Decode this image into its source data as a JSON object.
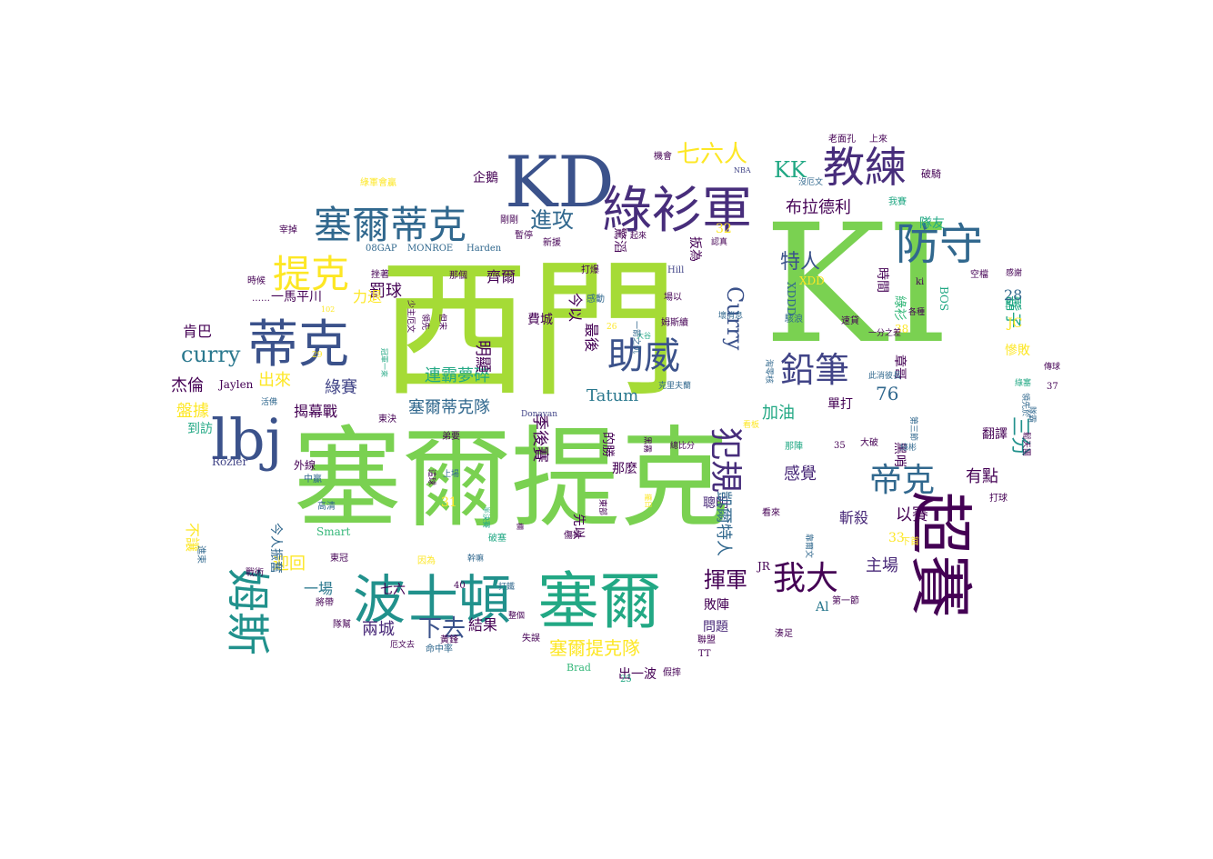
{
  "colors": {
    "background": "#ffffff",
    "green": "#7ad151",
    "lime": "#a5db36",
    "yellow": "#fde725",
    "purple": "#440154",
    "indigo": "#3b528b",
    "violet": "#472d7b",
    "teal": "#21918c",
    "teal2": "#2a788e",
    "slate": "#31688e",
    "seagreen": "#22a884",
    "mint": "#35b779",
    "navy": "#414487",
    "plum": "#482878"
  },
  "words": [
    {
      "text": "西門",
      "color": "lime"
    },
    {
      "text": "塞爾提克",
      "color": "green"
    },
    {
      "text": "KI",
      "color": "green"
    },
    {
      "text": "KD",
      "color": "indigo"
    },
    {
      "text": "綠衫軍",
      "color": "violet"
    },
    {
      "text": "塞爾蒂克",
      "color": "slate"
    },
    {
      "text": "蒂克",
      "color": "indigo"
    },
    {
      "text": "lbj",
      "color": "indigo"
    },
    {
      "text": "波士頓",
      "color": "teal"
    },
    {
      "text": "塞爾",
      "color": "seagreen"
    },
    {
      "text": "超賽",
      "color": "purple"
    },
    {
      "text": "教練",
      "color": "violet"
    },
    {
      "text": "防守",
      "color": "slate"
    },
    {
      "text": "提克",
      "color": "yellow"
    },
    {
      "text": "姆斯",
      "color": "teal"
    },
    {
      "text": "助威",
      "color": "indigo"
    },
    {
      "text": "犯規",
      "color": "violet"
    },
    {
      "text": "鉛筆",
      "color": "navy"
    },
    {
      "text": "我大",
      "color": "purple"
    },
    {
      "text": "帝克",
      "color": "slate"
    },
    {
      "text": "七六人",
      "color": "yellow"
    },
    {
      "text": "KK",
      "color": "seagreen"
    },
    {
      "text": "進攻",
      "color": "slate"
    },
    {
      "text": "Curry",
      "color": "indigo"
    },
    {
      "text": "curry",
      "color": "teal2"
    },
    {
      "text": "布拉德利",
      "color": "purple"
    },
    {
      "text": "特人",
      "color": "indigo"
    },
    {
      "text": "鬍子",
      "color": "seagreen"
    },
    {
      "text": "塞爾提克隊",
      "color": "yellow"
    },
    {
      "text": "下去",
      "color": "indigo"
    },
    {
      "text": "揮軍",
      "color": "purple"
    },
    {
      "text": "連霸夢碎",
      "color": "seagreen"
    },
    {
      "text": "綠賽",
      "color": "navy"
    },
    {
      "text": "Tatum",
      "color": "teal2"
    },
    {
      "text": "塞爾蒂克隊",
      "color": "slate"
    },
    {
      "text": "季後賽",
      "color": "purple"
    },
    {
      "text": "三分",
      "color": "teal"
    },
    {
      "text": "主場",
      "color": "plum"
    },
    {
      "text": "加油",
      "color": "seagreen"
    },
    {
      "text": "感覺",
      "color": "plum"
    },
    {
      "text": "有點",
      "color": "purple"
    },
    {
      "text": "以賽",
      "color": "purple"
    },
    {
      "text": "斬殺",
      "color": "plum"
    },
    {
      "text": "聰明",
      "color": "plum"
    },
    {
      "text": "敗陣",
      "color": "purple"
    },
    {
      "text": "問題",
      "color": "plum"
    },
    {
      "text": "兩城",
      "color": "plum"
    },
    {
      "text": "結果",
      "color": "purple"
    },
    {
      "text": "七六",
      "color": "purple"
    },
    {
      "text": "一場",
      "color": "teal2"
    },
    {
      "text": "迎回",
      "color": "yellow"
    },
    {
      "text": "不讓",
      "color": "yellow"
    },
    {
      "text": "出來",
      "color": "yellow"
    },
    {
      "text": "杰倫",
      "color": "purple"
    },
    {
      "text": "肯巴",
      "color": "purple"
    },
    {
      "text": "盤據",
      "color": "yellow"
    },
    {
      "text": "到訪",
      "color": "seagreen"
    },
    {
      "text": "揭幕戰",
      "color": "purple"
    },
    {
      "text": "罰球",
      "color": "purple"
    },
    {
      "text": "一馬平川",
      "color": "purple"
    },
    {
      "text": "力退",
      "color": "yellow"
    },
    {
      "text": "明顯",
      "color": "purple"
    },
    {
      "text": "齊爾",
      "color": "purple"
    },
    {
      "text": "費城",
      "color": "purple"
    },
    {
      "text": "今以",
      "color": "purple"
    },
    {
      "text": "最後",
      "color": "purple"
    },
    {
      "text": "驚滔",
      "color": "purple"
    },
    {
      "text": "扳為",
      "color": "purple"
    },
    {
      "text": "先以",
      "color": "purple"
    },
    {
      "text": "那麼",
      "color": "purple"
    },
    {
      "text": "的勝",
      "color": "purple"
    },
    {
      "text": "凱爾特人",
      "color": "slate"
    },
    {
      "text": "隊友",
      "color": "seagreen"
    },
    {
      "text": "時間",
      "color": "purple"
    },
    {
      "text": "慘敗",
      "color": "yellow"
    },
    {
      "text": "翻譯",
      "color": "purple"
    },
    {
      "text": "單打",
      "color": "purple"
    },
    {
      "text": "黑哨",
      "color": "purple"
    },
    {
      "text": "章哥",
      "color": "purple"
    },
    {
      "text": "綠衫",
      "color": "mint"
    },
    {
      "text": "出一波",
      "color": "purple"
    },
    {
      "text": "今人振奮",
      "color": "slate"
    },
    {
      "text": "企鵝",
      "color": "purple"
    },
    {
      "text": "76",
      "color": "slate"
    },
    {
      "text": "32",
      "color": "yellow"
    },
    {
      "text": "28",
      "color": "slate"
    },
    {
      "text": "JC",
      "color": "yellow"
    },
    {
      "text": "33",
      "color": "yellow"
    },
    {
      "text": "31",
      "color": "yellow"
    },
    {
      "text": "38",
      "color": "yellow"
    },
    {
      "text": "Al",
      "color": "teal2"
    },
    {
      "text": "XDDD",
      "color": "slate"
    },
    {
      "text": "XDD",
      "color": "yellow"
    },
    {
      "text": "Jaylen",
      "color": "purple"
    },
    {
      "text": "Rozier",
      "color": "navy"
    },
    {
      "text": "Smart",
      "color": "mint"
    },
    {
      "text": "Donavan",
      "color": "navy"
    },
    {
      "text": "Hill",
      "color": "navy"
    },
    {
      "text": "BOS",
      "color": "seagreen"
    },
    {
      "text": "Bos",
      "color": "seagreen"
    },
    {
      "text": "ki",
      "color": "purple"
    },
    {
      "text": "37",
      "color": "purple"
    },
    {
      "text": "35",
      "color": "purple"
    },
    {
      "text": "40",
      "color": "purple"
    },
    {
      "text": "25",
      "color": "seagreen"
    },
    {
      "text": "26",
      "color": "yellow"
    },
    {
      "text": "29",
      "color": "yellow"
    },
    {
      "text": "102",
      "color": "yellow"
    },
    {
      "text": "Brad",
      "color": "mint"
    },
    {
      "text": "TT",
      "color": "purple"
    },
    {
      "text": "JR",
      "color": "purple"
    },
    {
      "text": "NBA",
      "color": "navy"
    },
    {
      "text": "08GAP",
      "color": "slate"
    },
    {
      "text": "MONROE",
      "color": "slate"
    },
    {
      "text": "Harden",
      "color": "slate"
    },
    {
      "text": "綠軍會贏",
      "color": "yellow"
    },
    {
      "text": "宰掉",
      "color": "purple"
    },
    {
      "text": "時候",
      "color": "purple"
    },
    {
      "text": "……",
      "color": "purple"
    },
    {
      "text": "挫著",
      "color": "purple"
    },
    {
      "text": "那個",
      "color": "purple"
    },
    {
      "text": "剛剛",
      "color": "purple"
    },
    {
      "text": "暫停",
      "color": "purple"
    },
    {
      "text": "新援",
      "color": "purple"
    },
    {
      "text": "起來",
      "color": "purple"
    },
    {
      "text": "認真",
      "color": "purple"
    },
    {
      "text": "機會",
      "color": "purple"
    },
    {
      "text": "老面孔",
      "color": "purple"
    },
    {
      "text": "上來",
      "color": "purple"
    },
    {
      "text": "沒厄文",
      "color": "slate"
    },
    {
      "text": "我賽",
      "color": "seagreen"
    },
    {
      "text": "破騎",
      "color": "purple"
    },
    {
      "text": "空檔",
      "color": "purple"
    },
    {
      "text": "感謝",
      "color": "purple"
    },
    {
      "text": "傳球",
      "color": "purple"
    },
    {
      "text": "打爆",
      "color": "purple"
    },
    {
      "text": "場以",
      "color": "purple"
    },
    {
      "text": "感動",
      "color": "slate"
    },
    {
      "text": "姆斯續",
      "color": "purple"
    },
    {
      "text": "壞消息",
      "color": "slate"
    },
    {
      "text": "駭浪",
      "color": "slate"
    },
    {
      "text": "速貸",
      "color": "purple"
    },
    {
      "text": "一分之差",
      "color": "purple"
    },
    {
      "text": "各種",
      "color": "purple"
    },
    {
      "text": "此消彼長",
      "color": "slate"
    },
    {
      "text": "領先",
      "color": "purple"
    },
    {
      "text": "但宋",
      "color": "purple"
    },
    {
      "text": "少主厄文",
      "color": "purple"
    },
    {
      "text": "領先於",
      "color": "slate"
    },
    {
      "text": "第三節",
      "color": "slate"
    },
    {
      "text": "大破",
      "color": "purple"
    },
    {
      "text": "綠彬",
      "color": "slate"
    },
    {
      "text": "那陣",
      "color": "seagreen"
    },
    {
      "text": "總比分",
      "color": "purple"
    },
    {
      "text": "克里夫蘭",
      "color": "slate"
    },
    {
      "text": "東決",
      "color": "purple"
    },
    {
      "text": "弟要",
      "color": "purple"
    },
    {
      "text": "這球",
      "color": "purple"
    },
    {
      "text": "上場",
      "color": "slate"
    },
    {
      "text": "外線",
      "color": "purple"
    },
    {
      "text": "中贏",
      "color": "slate"
    },
    {
      "text": "高清",
      "color": "slate"
    },
    {
      "text": "活佛",
      "color": "slate"
    },
    {
      "text": "東冠",
      "color": "purple"
    },
    {
      "text": "破塞",
      "color": "seagreen"
    },
    {
      "text": "因為",
      "color": "yellow"
    },
    {
      "text": "幹嘛",
      "color": "slate"
    },
    {
      "text": "打鐵",
      "color": "slate"
    },
    {
      "text": "整個",
      "color": "purple"
    },
    {
      "text": "將帶",
      "color": "purple"
    },
    {
      "text": "隊幫",
      "color": "purple"
    },
    {
      "text": "戰術",
      "color": "purple"
    },
    {
      "text": "進束",
      "color": "slate"
    },
    {
      "text": "厄文去",
      "color": "purple"
    },
    {
      "text": "命中率",
      "color": "slate"
    },
    {
      "text": "黃鋒",
      "color": "purple"
    },
    {
      "text": "失誤",
      "color": "purple"
    },
    {
      "text": "聯盟",
      "color": "purple"
    },
    {
      "text": "假摔",
      "color": "purple"
    },
    {
      "text": "看來",
      "color": "purple"
    },
    {
      "text": "靠爾文",
      "color": "slate"
    },
    {
      "text": "湊足",
      "color": "purple"
    },
    {
      "text": "第一節",
      "color": "purple"
    },
    {
      "text": "下首",
      "color": "yellow"
    },
    {
      "text": "打球",
      "color": "purple"
    },
    {
      "text": "綠塞",
      "color": "seagreen"
    },
    {
      "text": "淘零核",
      "color": "slate"
    },
    {
      "text": "大谷",
      "color": "seagreen"
    },
    {
      "text": "傷掉",
      "color": "purple"
    },
    {
      "text": "東部",
      "color": "purple"
    },
    {
      "text": "隊霸",
      "color": "slate"
    },
    {
      "text": "看板",
      "color": "yellow"
    },
    {
      "text": "一箭之仇",
      "color": "slate"
    },
    {
      "text": "冠軍一來",
      "color": "seagreen"
    },
    {
      "text": "半決賽",
      "color": "seagreen"
    },
    {
      "text": "黑霧",
      "color": "purple"
    },
    {
      "text": "擺日",
      "color": "yellow"
    },
    {
      "text": "鬆天團",
      "color": "purple"
    },
    {
      "text": "欄",
      "color": "purple"
    }
  ]
}
